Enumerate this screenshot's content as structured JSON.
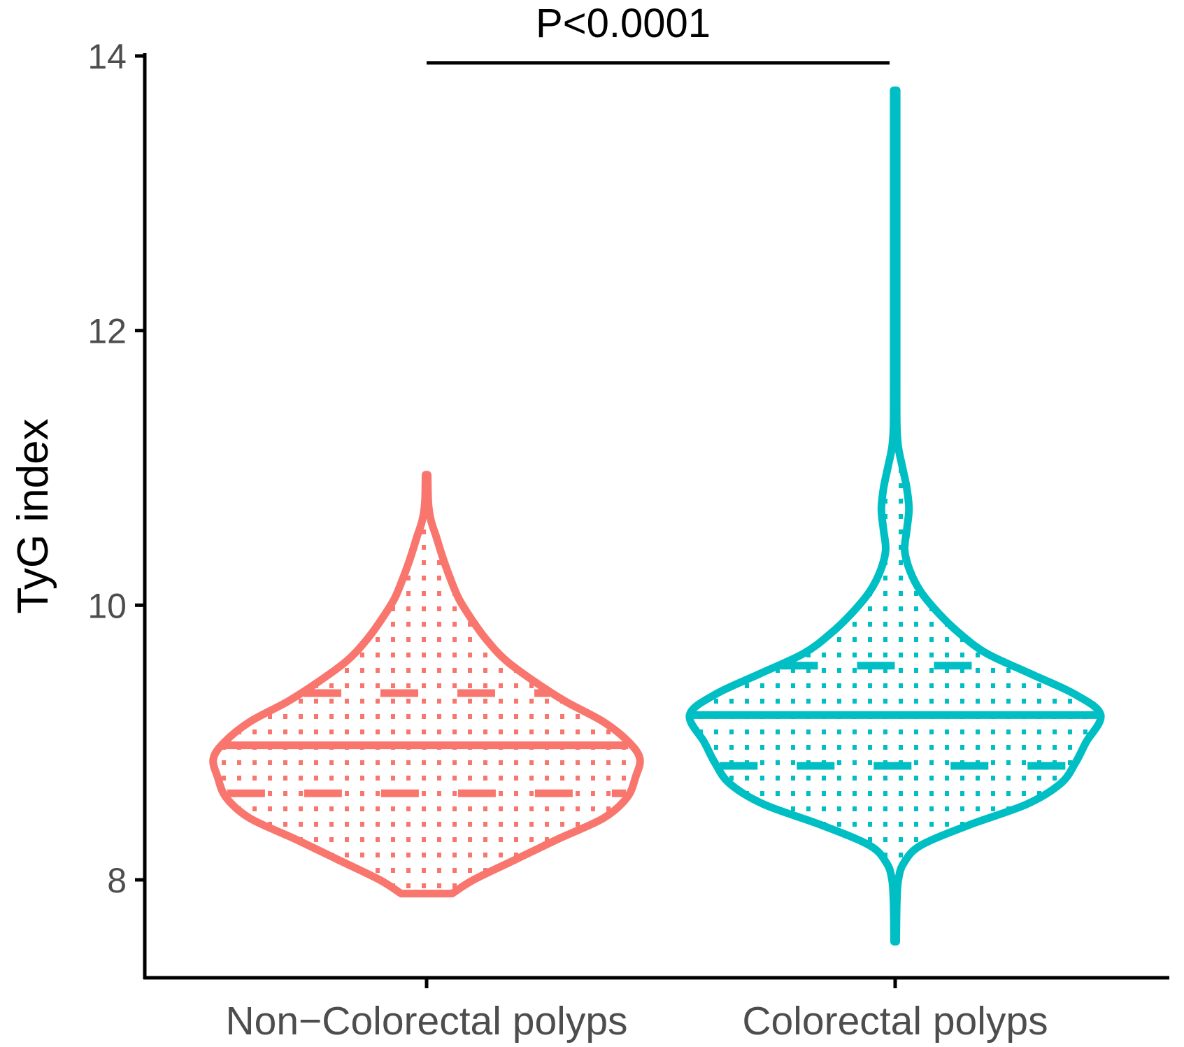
{
  "chart_data": {
    "type": "violin",
    "title": "",
    "xlabel": "",
    "ylabel": "TyG index",
    "ylim": [
      7.3,
      14.05
    ],
    "yticks": [
      8,
      10,
      12,
      14
    ],
    "grid": false,
    "legend": "none",
    "categories": [
      "Non−Colorectal polyps",
      "Colorectal polyps"
    ],
    "series": [
      {
        "color": "#F8766D",
        "min": 7.9,
        "max": 10.95,
        "q1": 8.63,
        "median": 8.98,
        "q3": 9.36,
        "density_profile": [
          [
            7.9,
            0.12
          ],
          [
            8.0,
            0.22
          ],
          [
            8.15,
            0.42
          ],
          [
            8.3,
            0.62
          ],
          [
            8.45,
            0.83
          ],
          [
            8.6,
            0.94
          ],
          [
            8.75,
            0.98
          ],
          [
            8.88,
            1.0
          ],
          [
            9.0,
            0.95
          ],
          [
            9.15,
            0.83
          ],
          [
            9.3,
            0.65
          ],
          [
            9.45,
            0.5
          ],
          [
            9.6,
            0.37
          ],
          [
            9.75,
            0.28
          ],
          [
            9.9,
            0.21
          ],
          [
            10.05,
            0.15
          ],
          [
            10.2,
            0.11
          ],
          [
            10.35,
            0.075
          ],
          [
            10.5,
            0.045
          ],
          [
            10.62,
            0.02
          ],
          [
            10.75,
            0.008
          ],
          [
            10.95,
            0.005
          ]
        ]
      },
      {
        "color": "#00BFC4",
        "min": 7.55,
        "max": 13.75,
        "q1": 8.83,
        "median": 9.2,
        "q3": 9.56,
        "density_profile": [
          [
            7.55,
            0.005
          ],
          [
            7.7,
            0.006
          ],
          [
            7.85,
            0.008
          ],
          [
            8.0,
            0.015
          ],
          [
            8.12,
            0.04
          ],
          [
            8.25,
            0.12
          ],
          [
            8.4,
            0.35
          ],
          [
            8.55,
            0.62
          ],
          [
            8.7,
            0.78
          ],
          [
            8.85,
            0.85
          ],
          [
            9.0,
            0.9
          ],
          [
            9.2,
            0.97
          ],
          [
            9.35,
            0.85
          ],
          [
            9.5,
            0.64
          ],
          [
            9.65,
            0.43
          ],
          [
            9.8,
            0.3
          ],
          [
            9.95,
            0.2
          ],
          [
            10.1,
            0.12
          ],
          [
            10.25,
            0.07
          ],
          [
            10.4,
            0.045
          ],
          [
            10.55,
            0.055
          ],
          [
            10.7,
            0.065
          ],
          [
            10.85,
            0.055
          ],
          [
            11.0,
            0.035
          ],
          [
            11.15,
            0.015
          ],
          [
            11.3,
            0.008
          ],
          [
            11.6,
            0.007
          ],
          [
            12.5,
            0.007
          ],
          [
            13.75,
            0.007
          ]
        ]
      }
    ],
    "annotation": {
      "text": "P<0.0001",
      "y": 13.95
    }
  }
}
